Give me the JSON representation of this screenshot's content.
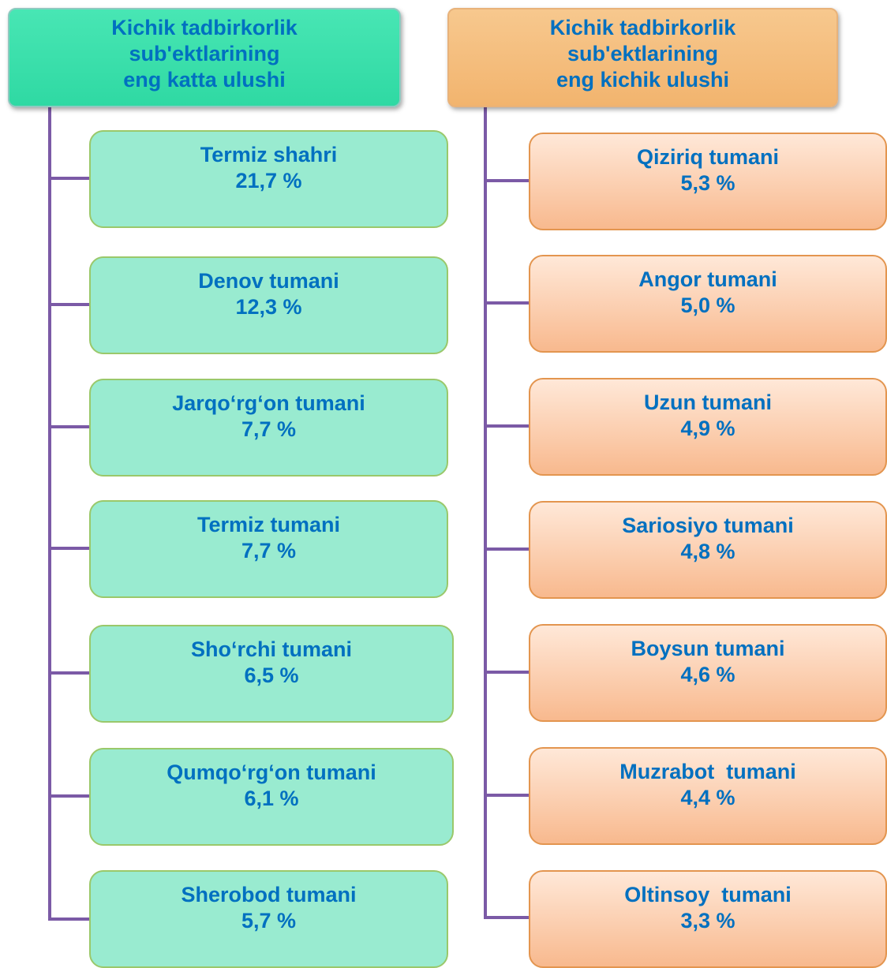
{
  "columns": [
    {
      "header": [
        "Kichik tadbirkorlik",
        "sub'ektlarining",
        "eng katta ulushi"
      ],
      "items": [
        {
          "name": "Termiz shahri",
          "value": "21,7 %"
        },
        {
          "name": "Denov tumani",
          "value": "12,3 %"
        },
        {
          "name": "Jarqo‘rg‘on tumani",
          "value": "7,7 %"
        },
        {
          "name": "Termiz tumani",
          "value": "7,7 %"
        },
        {
          "name": "Sho‘rchi tumani",
          "value": "6,5 %"
        },
        {
          "name": "Qumqo‘rg‘on tumani",
          "value": "6,1 %"
        },
        {
          "name": "Sherobod tumani",
          "value": "5,7 %"
        }
      ]
    },
    {
      "header": [
        "Kichik tadbirkorlik",
        "sub'ektlarining",
        "eng kichik ulushi"
      ],
      "items": [
        {
          "name": "Qiziriq tumani",
          "value": "5,3 %"
        },
        {
          "name": "Angor tumani",
          "value": "5,0 %"
        },
        {
          "name": "Uzun tumani",
          "value": "4,9 %"
        },
        {
          "name": "Sariosiyo tumani",
          "value": "4,8 %"
        },
        {
          "name": "Boysun tumani",
          "value": "4,6 %"
        },
        {
          "name": "Muzrabot  tumani",
          "value": "4,4 %"
        },
        {
          "name": "Oltinsoy  tumani",
          "value": "3,3 %"
        }
      ]
    }
  ]
}
